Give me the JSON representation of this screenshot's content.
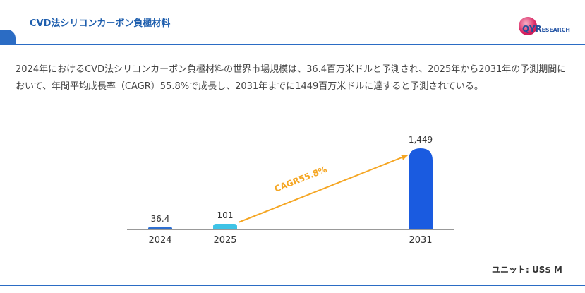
{
  "header": {
    "title": "CVD法シリコンカーボン負極材料"
  },
  "logo": {
    "brand": "QYRESEARCH",
    "brand_main": "QYR",
    "brand_rest": "ESEARCH",
    "icon": "globe-icon"
  },
  "description": "2024年におけるCVD法シリコンカーボン負極材料の世界市場規模は、36.4百万米ドルと予測され、2025年から2031年の予測期間において、年間平均成長率（CAGR）55.8%で成長し、2031年までに1449百万米ドルに達すると予測されている。",
  "unit": "ユニット: US$ M",
  "colors": {
    "accent": "#2b6cc4",
    "bar_2024": "#2e6fd0",
    "bar_2025": "#3ec3e6",
    "bar_2031": "#1a5be0",
    "cagr_arrow": "#f5a623"
  },
  "chart_data": {
    "type": "bar",
    "categories": [
      "2024",
      "2025",
      "2031"
    ],
    "values": [
      36.4,
      101,
      1449
    ],
    "value_labels": [
      "36.4",
      "101",
      "1,449"
    ],
    "annotation": {
      "text": "CAGR55.8%",
      "from": "2025",
      "to": "2031"
    },
    "title": "",
    "xlabel": "",
    "ylabel": "",
    "ylim": [
      0,
      1449
    ],
    "grid": false,
    "legend": "none"
  }
}
